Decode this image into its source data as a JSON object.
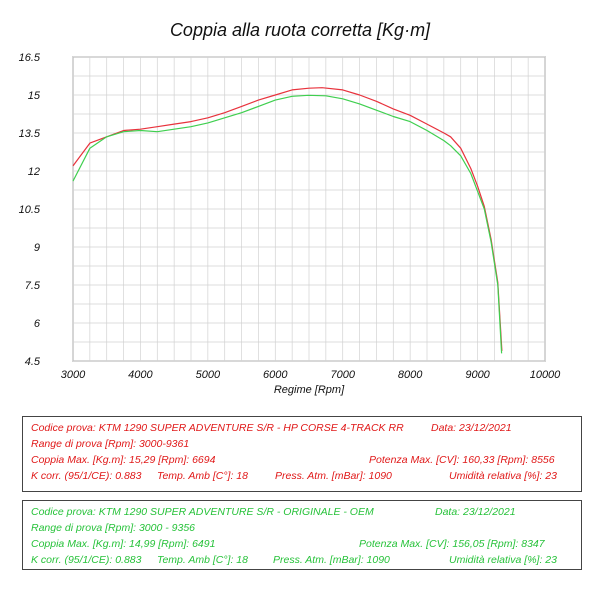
{
  "chart_data": {
    "type": "line",
    "title": "Coppia alla ruota corretta [Kg·m]",
    "xlabel": "Regime [Rpm]",
    "ylabel": "",
    "xlim": [
      3000,
      10000
    ],
    "ylim": [
      4.5,
      16.5
    ],
    "xticks": [
      "3000",
      "4000",
      "5000",
      "6000",
      "7000",
      "8000",
      "9000",
      "10000"
    ],
    "xtick_values": [
      3000,
      4000,
      5000,
      6000,
      7000,
      8000,
      9000,
      10000
    ],
    "yticks": [
      "16.5",
      "15",
      "13.5",
      "12",
      "10.5",
      "9",
      "7.5",
      "6",
      "4.5"
    ],
    "ytick_values": [
      16.5,
      15,
      13.5,
      12,
      10.5,
      9,
      7.5,
      6,
      4.5
    ],
    "grid": true,
    "series": [
      {
        "color": "#e8323c",
        "x": [
          3000,
          3250,
          3500,
          3750,
          4000,
          4250,
          4500,
          4750,
          5000,
          5250,
          5500,
          5750,
          6000,
          6250,
          6500,
          6694,
          7000,
          7250,
          7500,
          7750,
          8000,
          8250,
          8500,
          8600,
          8750,
          8900,
          9000,
          9100,
          9200,
          9300,
          9361
        ],
        "y": [
          12.2,
          13.1,
          13.35,
          13.6,
          13.65,
          13.75,
          13.85,
          13.95,
          14.1,
          14.3,
          14.55,
          14.8,
          15.0,
          15.2,
          15.27,
          15.29,
          15.2,
          15.0,
          14.75,
          14.45,
          14.2,
          13.85,
          13.5,
          13.35,
          12.9,
          12.1,
          11.4,
          10.6,
          9.3,
          7.6,
          4.9
        ]
      },
      {
        "color": "#3fcf4f",
        "x": [
          3000,
          3250,
          3500,
          3750,
          4000,
          4250,
          4500,
          4750,
          5000,
          5250,
          5500,
          5750,
          6000,
          6250,
          6491,
          6750,
          7000,
          7250,
          7500,
          7750,
          8000,
          8250,
          8500,
          8600,
          8750,
          8900,
          9000,
          9100,
          9200,
          9300,
          9356
        ],
        "y": [
          11.6,
          12.9,
          13.35,
          13.55,
          13.6,
          13.55,
          13.65,
          13.75,
          13.9,
          14.1,
          14.3,
          14.55,
          14.8,
          14.95,
          14.99,
          14.97,
          14.85,
          14.65,
          14.4,
          14.15,
          13.95,
          13.6,
          13.2,
          13.0,
          12.6,
          11.9,
          11.2,
          10.5,
          9.2,
          7.5,
          4.8
        ]
      }
    ]
  },
  "tests": [
    {
      "line1_left": "Codice prova: KTM 1290  SUPER ADVENTURE S/R - HP CORSE  4-TRACK RR",
      "line1_right": "Data: 23/12/2021",
      "line2_left": "Range di prova [Rpm]: 3000-9361",
      "line3_left": "Coppia Max. [Kg.m]:  15,29  [Rpm]: 6694",
      "line3_right": "Potenza Max. [CV]:  160,33 [Rpm]: 8556",
      "line4_a": "K corr. (95/1/CE): 0.883",
      "line4_b": "Temp. Amb [C°]: 18",
      "line4_c": "Press. Atm. [mBar]: 1090",
      "line4_d": "Umidità relativa [%]: 23",
      "color": "#e01818"
    },
    {
      "line1_left": "Codice prova: KTM 1290  SUPER ADVENTURE S/R - ORIGINALE - OEM",
      "line1_right": "Data: 23/12/2021",
      "line2_left": "Range di prova [Rpm]: 3000 - 9356",
      "line3_left": "Coppia Max. [Kg.m]: 14,99  [Rpm]: 6491",
      "line3_right": "Potenza Max. [CV]: 156,05  [Rpm]: 8347",
      "line4_a": "K corr. (95/1/CE): 0.883",
      "line4_b": "Temp. Amb [C°]: 18",
      "line4_c": "Press. Atm. [mBar]: 1090",
      "line4_d": "Umidità relativa [%]: 23",
      "color": "#27c23a"
    }
  ]
}
